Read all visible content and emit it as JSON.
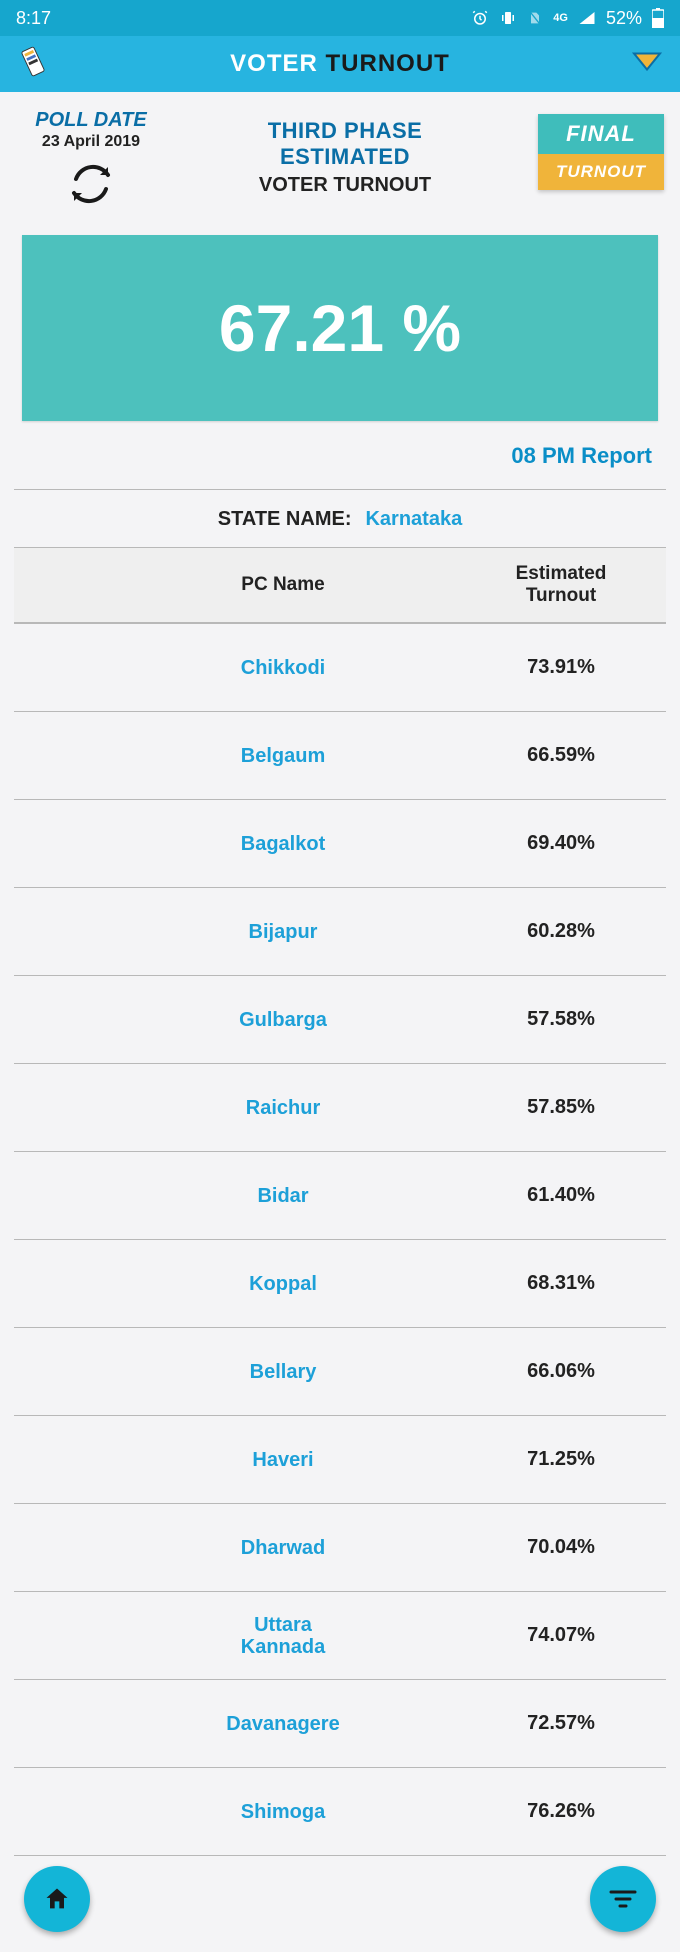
{
  "status": {
    "time": "8:17",
    "battery": "52%",
    "signal_label": "4G"
  },
  "app_title": {
    "part1": "VOTER ",
    "part2": "TURNOUT"
  },
  "poll_date": {
    "label": "POLL DATE",
    "value": "23 April 2019"
  },
  "phase": {
    "line1": "THIRD PHASE",
    "line2": "ESTIMATED",
    "sub": "VOTER TURNOUT"
  },
  "badge": {
    "top": "FINAL",
    "bottom": "TURNOUT"
  },
  "overall_pct": "67.21  %",
  "report_time": "08 PM Report",
  "state": {
    "label": "STATE NAME:",
    "value": "Karnataka"
  },
  "table": {
    "headers": {
      "name": "PC Name",
      "turnout_l1": "Estimated",
      "turnout_l2": "Turnout"
    },
    "rows": [
      {
        "name": "Chikkodi",
        "turnout": "73.91%"
      },
      {
        "name": "Belgaum",
        "turnout": "66.59%"
      },
      {
        "name": "Bagalkot",
        "turnout": "69.40%"
      },
      {
        "name": "Bijapur",
        "turnout": "60.28%"
      },
      {
        "name": "Gulbarga",
        "turnout": "57.58%"
      },
      {
        "name": "Raichur",
        "turnout": "57.85%"
      },
      {
        "name": "Bidar",
        "turnout": "61.40%"
      },
      {
        "name": "Koppal",
        "turnout": "68.31%"
      },
      {
        "name": "Bellary",
        "turnout": "66.06%"
      },
      {
        "name": "Haveri",
        "turnout": "71.25%"
      },
      {
        "name": "Dharwad",
        "turnout": "70.04%"
      },
      {
        "name": "Uttara\nKannada",
        "turnout": "74.07%"
      },
      {
        "name": "Davanagere",
        "turnout": "72.57%"
      },
      {
        "name": "Shimoga",
        "turnout": "76.26%"
      }
    ]
  },
  "colors": {
    "status_bg": "#16a6cd",
    "appbar_bg": "#27b4e0",
    "accent_text": "#0a6ea6",
    "link_text": "#1da0d8",
    "pct_card_bg": "#4dc1bd",
    "badge_top_bg": "#3fbdbb",
    "badge_bot_bg": "#f0b43a",
    "fab_bg": "#13b5d7",
    "divider": "#b8b8b8",
    "thead_bg": "#efefef",
    "body_bg": "#f4f4f6"
  }
}
